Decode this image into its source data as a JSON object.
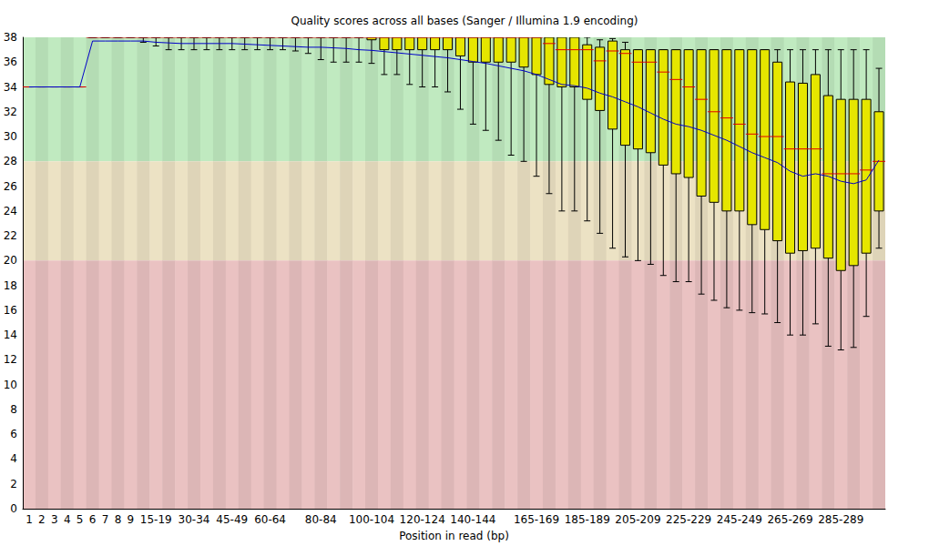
{
  "chart_data": {
    "type": "boxplot",
    "title": "Quality scores across all bases (Sanger / Illumina 1.9 encoding)",
    "x_label": "Position in read (bp)",
    "categories": [
      "1",
      "2",
      "3",
      "4",
      "5",
      "6",
      "7",
      "8",
      "9",
      null,
      "15-19",
      null,
      null,
      "30-34",
      null,
      null,
      "45-49",
      null,
      null,
      "60-64",
      null,
      null,
      null,
      "80-84",
      null,
      null,
      null,
      "100-104",
      null,
      null,
      null,
      "120-124",
      null,
      null,
      null,
      "140-144",
      null,
      null,
      null,
      null,
      "165-169",
      null,
      null,
      null,
      "185-189",
      null,
      null,
      null,
      "205-209",
      null,
      null,
      null,
      "225-229",
      null,
      null,
      null,
      "245-249",
      null,
      null,
      null,
      "265-269",
      null,
      null,
      null,
      "285-289",
      null,
      null,
      null
    ],
    "series": [
      {
        "type": "boxplot",
        "color": "#e6e600",
        "values": [
          [
            34,
            34,
            34,
            34,
            34
          ],
          [
            34,
            34,
            34,
            34,
            34
          ],
          [
            34,
            34,
            34,
            34,
            34
          ],
          [
            34,
            34,
            34,
            34,
            34
          ],
          [
            34,
            34,
            34,
            34,
            34
          ],
          [
            38,
            38,
            38,
            38,
            38
          ],
          [
            38,
            38,
            38,
            38,
            38
          ],
          [
            38,
            38,
            38,
            38,
            38
          ],
          [
            38,
            38,
            38,
            38,
            38
          ],
          [
            37.6,
            38,
            38,
            38,
            38
          ],
          [
            37.3,
            38,
            38,
            38,
            38
          ],
          [
            37,
            38,
            38,
            38,
            38
          ],
          [
            37,
            38,
            38,
            38,
            38
          ],
          [
            37,
            38,
            38,
            38,
            38
          ],
          [
            37,
            38,
            38,
            38,
            38
          ],
          [
            37,
            38,
            38,
            38,
            38
          ],
          [
            37,
            38,
            38,
            38,
            38
          ],
          [
            37,
            38,
            38,
            38,
            38
          ],
          [
            37,
            38,
            38,
            38,
            38
          ],
          [
            37,
            38,
            38,
            38,
            38
          ],
          [
            37,
            38,
            38,
            38,
            38
          ],
          [
            36.9,
            38,
            38,
            38,
            38
          ],
          [
            36.7,
            38,
            38,
            38,
            38
          ],
          [
            36.2,
            38,
            38,
            38,
            38
          ],
          [
            36,
            38,
            38,
            38,
            38
          ],
          [
            36,
            38,
            38,
            38,
            38
          ],
          [
            36,
            38,
            38,
            38,
            38
          ],
          [
            35.9,
            37.8,
            38,
            38,
            38
          ],
          [
            35,
            37,
            38,
            38,
            38
          ],
          [
            35,
            37,
            38,
            38,
            38
          ],
          [
            34.2,
            37,
            38,
            38,
            38
          ],
          [
            34,
            37,
            38,
            38,
            38
          ],
          [
            34,
            37,
            38,
            38,
            38
          ],
          [
            33.6,
            37,
            38,
            38,
            38
          ],
          [
            32.2,
            36.5,
            38,
            38,
            38
          ],
          [
            31,
            36,
            38,
            38,
            38
          ],
          [
            30.5,
            36,
            38,
            38,
            38
          ],
          [
            29.7,
            36,
            38,
            38,
            38
          ],
          [
            28.5,
            36,
            38,
            38,
            38
          ],
          [
            28,
            35.6,
            38,
            38,
            38
          ],
          [
            26.8,
            35,
            38,
            38,
            38
          ],
          [
            25.4,
            34.2,
            37.5,
            38,
            38
          ],
          [
            24,
            34,
            37,
            38,
            38
          ],
          [
            24,
            34,
            37,
            38,
            38
          ],
          [
            23.2,
            33,
            37,
            37.4,
            38
          ],
          [
            22.2,
            32.1,
            36.1,
            37.2,
            37.8
          ],
          [
            21,
            30.6,
            36.9,
            37.7,
            37.9
          ],
          [
            20.3,
            29.3,
            36.7,
            37,
            37.6
          ],
          [
            20,
            29,
            36,
            37,
            37
          ],
          [
            19.7,
            28.7,
            36,
            37,
            37
          ],
          [
            18.8,
            27.7,
            35.2,
            37,
            37
          ],
          [
            18.3,
            27,
            34.6,
            37,
            37
          ],
          [
            18.3,
            26.7,
            34,
            37,
            37
          ],
          [
            17.3,
            25.2,
            33,
            37,
            37
          ],
          [
            16.8,
            24.7,
            32,
            37,
            37
          ],
          [
            16.2,
            24,
            31.5,
            37,
            37
          ],
          [
            16,
            24,
            31,
            37,
            37
          ],
          [
            15.8,
            22.9,
            30.2,
            37,
            37
          ],
          [
            15.7,
            22.5,
            30,
            37,
            37
          ],
          [
            15,
            21.6,
            30,
            36,
            37
          ],
          [
            14,
            20.6,
            29,
            34.4,
            37
          ],
          [
            14,
            20.8,
            29,
            34.3,
            37
          ],
          [
            14.9,
            21,
            29,
            35,
            37
          ],
          [
            13.1,
            20.2,
            27,
            33.3,
            37
          ],
          [
            12.8,
            19.2,
            27,
            33,
            37
          ],
          [
            13,
            19.6,
            27,
            33,
            37
          ],
          [
            15.5,
            20.6,
            27.3,
            33,
            37
          ],
          [
            21,
            24,
            28,
            32,
            35.5
          ]
        ]
      },
      {
        "type": "line",
        "color": "#0000c8",
        "values": [
          34,
          34,
          34,
          34,
          34,
          37.7,
          37.7,
          37.7,
          37.7,
          37.7,
          37.6,
          37.55,
          37.5,
          37.5,
          37.5,
          37.5,
          37.5,
          37.45,
          37.4,
          37.35,
          37.3,
          37.25,
          37.2,
          37.2,
          37.15,
          37.1,
          37.0,
          36.95,
          36.85,
          36.75,
          36.65,
          36.55,
          36.45,
          36.35,
          36.2,
          36.05,
          35.9,
          35.7,
          35.5,
          35.3,
          35.0,
          34.6,
          34.2,
          34.1,
          33.9,
          33.5,
          33.2,
          32.8,
          32.4,
          31.9,
          31.4,
          31.0,
          30.8,
          30.5,
          30.1,
          29.7,
          29.2,
          28.7,
          28.3,
          27.9,
          27.2,
          26.8,
          27.0,
          26.8,
          26.4,
          26.2,
          26.5,
          28.1
        ]
      }
    ],
    "bands": [
      {
        "from": 28,
        "to": 38,
        "color": "#c0eac0"
      },
      {
        "from": 20,
        "to": 28,
        "color": "#ece2c4"
      },
      {
        "from": 0,
        "to": 20,
        "color": "#eac2c2"
      }
    ],
    "ylim": [
      0,
      38
    ],
    "yticks": [
      0,
      2,
      4,
      6,
      8,
      10,
      12,
      14,
      16,
      18,
      20,
      22,
      24,
      26,
      28,
      30,
      32,
      34,
      36,
      38
    ],
    "grid": false
  }
}
